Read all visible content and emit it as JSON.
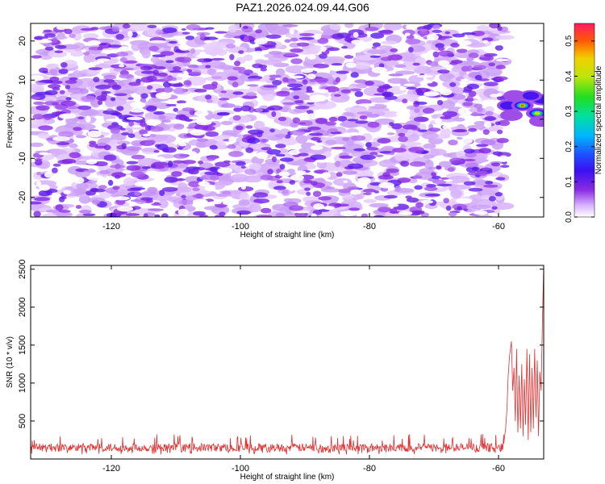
{
  "page": {
    "title": "PAZ1.2026.024.09.44.G06"
  },
  "chart_data": [
    {
      "type": "heatmap",
      "xlabel": "Height of straight line (km)",
      "ylabel": "Frequency (Hz)",
      "xlim": [
        -132.5,
        -53
      ],
      "ylim": [
        -25,
        24.5
      ],
      "x_ticks": [
        -120,
        -100,
        -80,
        -60
      ],
      "y_ticks": [
        20,
        10,
        0,
        -10,
        -20
      ],
      "colorbar": {
        "label": "Normalized spectral amplitude",
        "range": [
          0,
          0.55
        ],
        "ticks": [
          0.0,
          0.1,
          0.2,
          0.3,
          0.4,
          0.5
        ],
        "colormap": "rainbow (white→violet→blue→cyan→green→yellow→red→magenta)"
      },
      "noise_region": {
        "x_range": [
          -132,
          -59
        ],
        "freq_range": [
          -25,
          24
        ],
        "typical_amplitude": 0.05,
        "max_amplitude": 0.1
      },
      "features": [
        {
          "x": -58.5,
          "freq": 3.5,
          "amplitude": 0.12
        },
        {
          "x": -56.3,
          "freq": 3.5,
          "amplitude": 0.5
        },
        {
          "x": -54.0,
          "freq": 1.5,
          "amplitude": 0.45
        },
        {
          "x": -53.3,
          "freq": 5,
          "amplitude": 0.2
        },
        {
          "x": -57.5,
          "freq": 6,
          "amplitude": 0.1
        },
        {
          "x": -55.0,
          "freq": 6,
          "amplitude": 0.12
        },
        {
          "x": -58.0,
          "freq": 1,
          "amplitude": 0.08
        },
        {
          "x": -53.5,
          "freq": -0.5,
          "amplitude": 0.1
        }
      ],
      "grid": false,
      "colors": {
        "background": "#ffffff"
      }
    },
    {
      "type": "line",
      "xlabel": "Height of straight line (km)",
      "ylabel": "SNR (10 * v/v)",
      "xlim": [
        -132.5,
        -53
      ],
      "ylim": [
        0,
        2550
      ],
      "x_ticks": [
        -120,
        -100,
        -80,
        -60
      ],
      "y_ticks": [
        500,
        1000,
        1500,
        2000,
        2500
      ],
      "series": [
        {
          "color": "#e03030",
          "segments": [
            {
              "x_range": [
                -132.5,
                -59.2
              ],
              "baseline_mean": 150,
              "noise_range": [
                60,
                330
              ]
            }
          ],
          "points": [
            [
              -59.2,
              200
            ],
            [
              -58.9,
              400
            ],
            [
              -58.7,
              650
            ],
            [
              -58.5,
              1100
            ],
            [
              -58.3,
              1350
            ],
            [
              -58.0,
              1550
            ],
            [
              -57.8,
              900
            ],
            [
              -57.6,
              1200
            ],
            [
              -57.4,
              500
            ],
            [
              -57.2,
              1450
            ],
            [
              -57.0,
              350
            ],
            [
              -56.8,
              1100
            ],
            [
              -56.6,
              400
            ],
            [
              -56.4,
              1250
            ],
            [
              -56.2,
              300
            ],
            [
              -56.0,
              1050
            ],
            [
              -55.8,
              450
            ],
            [
              -55.6,
              1450
            ],
            [
              -55.4,
              250
            ],
            [
              -55.2,
              1380
            ],
            [
              -55.0,
              350
            ],
            [
              -54.8,
              1200
            ],
            [
              -54.6,
              400
            ],
            [
              -54.4,
              1450
            ],
            [
              -54.2,
              550
            ],
            [
              -54.0,
              1300
            ],
            [
              -53.8,
              300
            ],
            [
              -53.6,
              1150
            ],
            [
              -53.4,
              900
            ],
            [
              -53.2,
              1800
            ],
            [
              -53.0,
              2550
            ]
          ]
        }
      ],
      "grid": false
    }
  ]
}
